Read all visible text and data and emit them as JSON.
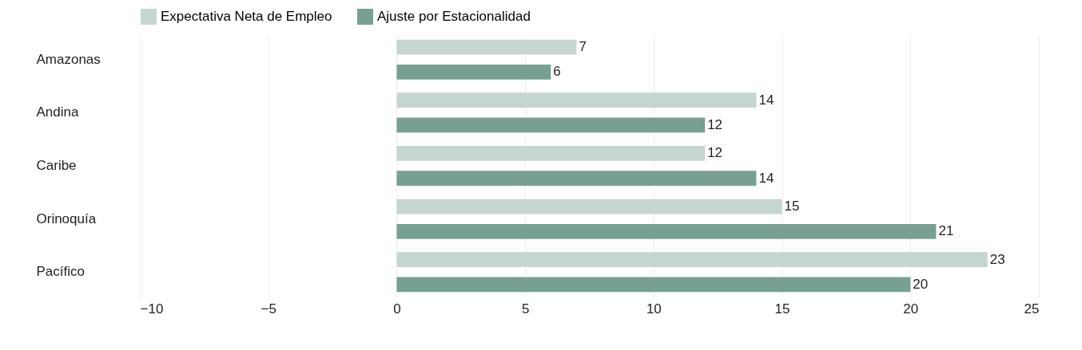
{
  "chart_data": {
    "type": "bar",
    "orientation": "horizontal",
    "categories": [
      "Amazonas",
      "Andina",
      "Caribe",
      "Orinoquía",
      "Pacífico"
    ],
    "series": [
      {
        "name": "Expectativa Neta de Empleo",
        "color": "#c5d6cf",
        "values": [
          7,
          14,
          12,
          15,
          23
        ]
      },
      {
        "name": "Ajuste por Estacionalidad",
        "color": "#78a092",
        "values": [
          6,
          12,
          14,
          21,
          20
        ]
      }
    ],
    "xlim": [
      -10,
      25
    ],
    "xticks": [
      -10,
      -5,
      0,
      5,
      10,
      15,
      20,
      25
    ],
    "grid": "x",
    "legend": "top",
    "data_labels": true
  }
}
